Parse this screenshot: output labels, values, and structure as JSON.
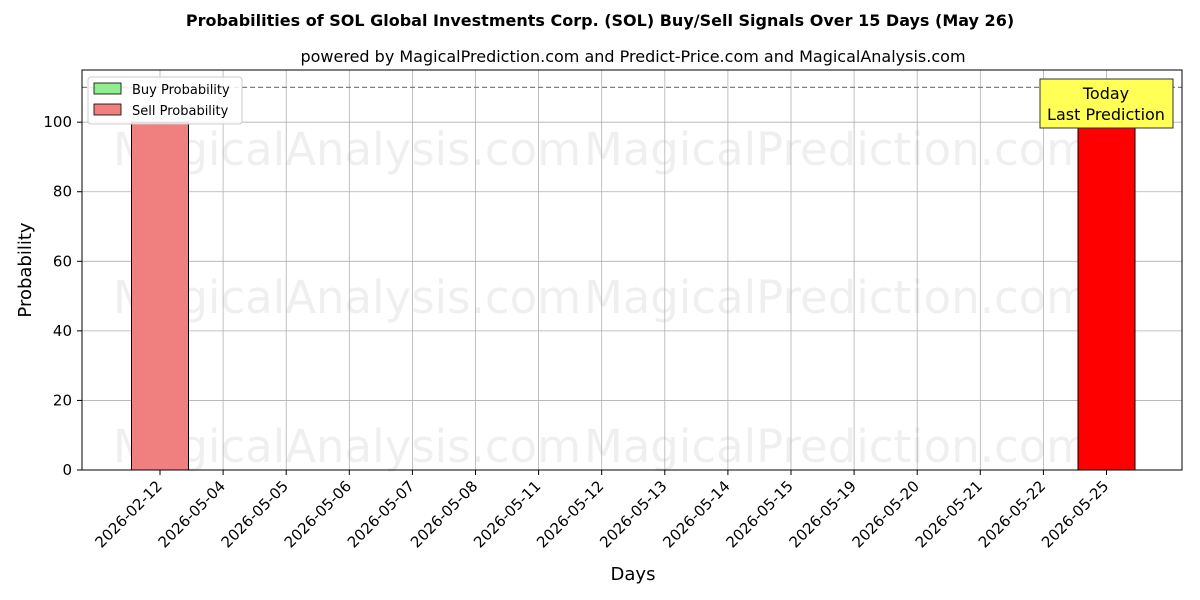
{
  "chart_data": {
    "type": "bar",
    "title": "Probabilities of SOL Global Investments Corp. (SOL) Buy/Sell Signals Over 15 Days (May 26)",
    "subtitle": "powered by MagicalPrediction.com and Predict-Price.com and MagicalAnalysis.com",
    "xlabel": "Days",
    "ylabel": "Probability",
    "ylim": [
      0,
      115
    ],
    "yticks": [
      0,
      20,
      40,
      60,
      80,
      100
    ],
    "grid": true,
    "legend_position": "top-left",
    "categories": [
      "2026-02-12",
      "2026-05-04",
      "2026-05-05",
      "2026-05-06",
      "2026-05-07",
      "2026-05-08",
      "2026-05-11",
      "2026-05-12",
      "2026-05-13",
      "2026-05-14",
      "2026-05-15",
      "2026-05-19",
      "2026-05-20",
      "2026-05-21",
      "2026-05-22",
      "2026-05-25"
    ],
    "series": [
      {
        "name": "Buy Probability",
        "color": "#90ee90",
        "values": [
          0,
          0,
          0,
          0,
          0,
          0,
          0,
          0,
          0,
          0,
          0,
          0,
          0,
          0,
          0,
          0
        ]
      },
      {
        "name": "Sell Probability",
        "color": "#f08080",
        "values": [
          100,
          0,
          0,
          0,
          0,
          0,
          0,
          0,
          0,
          0,
          0,
          0,
          0,
          0,
          0,
          100
        ]
      }
    ],
    "highlight": {
      "category": "2026-05-25",
      "color": "#ff0000"
    },
    "reference_line": {
      "y": 110,
      "style": "dashed"
    },
    "annotation": {
      "lines": [
        "Today",
        "Last Prediction"
      ],
      "color": "#ffff55"
    },
    "watermarks": [
      "MagicalAnalysis.com",
      "MagicalPrediction.com"
    ]
  }
}
